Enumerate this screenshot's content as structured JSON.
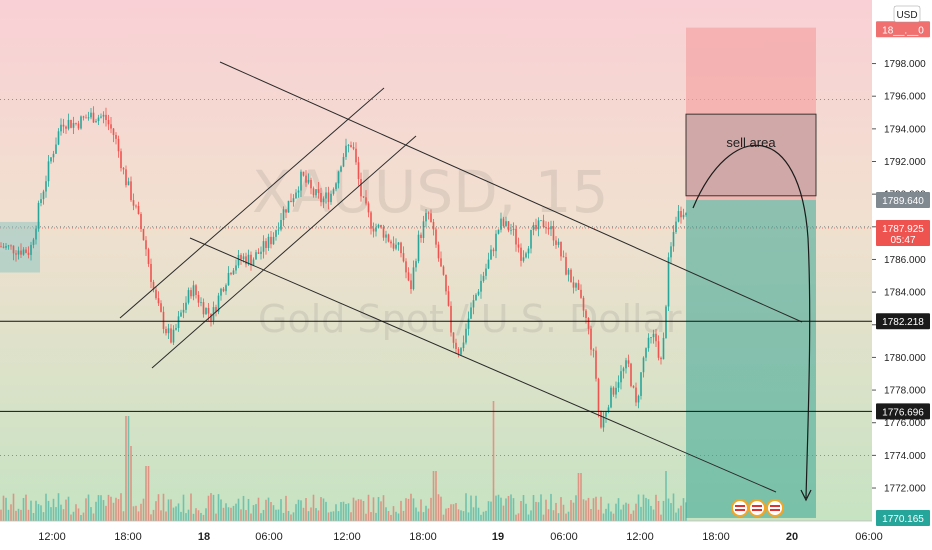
{
  "chart_data": {
    "type": "candlestick",
    "symbol": "XAUUSD, 15",
    "instrument_name": "Gold Spot / U.S. Dollar",
    "currency": "USD",
    "ylim": [
      1769.0,
      1800.3
    ],
    "price_ticks": [
      "1798.000",
      "1796.000",
      "1794.000",
      "1792.000",
      "1790.000",
      "1788.000",
      "1786.000",
      "1784.000",
      "1782.000",
      "1780.000",
      "1778.000",
      "1776.000",
      "1774.000",
      "1772.000"
    ],
    "time_ticks": [
      {
        "label": "12:00",
        "bold": false
      },
      {
        "label": "18:00",
        "bold": false
      },
      {
        "label": "18",
        "bold": true
      },
      {
        "label": "06:00",
        "bold": false
      },
      {
        "label": "12:00",
        "bold": false
      },
      {
        "label": "18:00",
        "bold": false
      },
      {
        "label": "19",
        "bold": true
      },
      {
        "label": "06:00",
        "bold": false
      },
      {
        "label": "12:00",
        "bold": false
      },
      {
        "label": "18:00",
        "bold": false
      },
      {
        "label": "20",
        "bold": true
      },
      {
        "label": "06:00",
        "bold": false
      }
    ],
    "price_labels": {
      "top_clipped": "18__.__0",
      "target": "1789.640",
      "last": "1787.925",
      "countdown": "05:47",
      "level_upper": "1782.218",
      "level_lower": "1776.696",
      "take_profit": "1770.165"
    },
    "horizontal_levels": [
      1782.218,
      1776.696
    ],
    "dotted_levels": [
      1795.8,
      1788.0,
      1774.0
    ],
    "annotation": "sell area",
    "price_path_keypoints": [
      [
        0,
        1786.8
      ],
      [
        30,
        1786.5
      ],
      [
        40,
        1789.5
      ],
      [
        50,
        1792.0
      ],
      [
        62,
        1794.5
      ],
      [
        75,
        1794.3
      ],
      [
        90,
        1794.8
      ],
      [
        105,
        1794.7
      ],
      [
        115,
        1793.5
      ],
      [
        125,
        1791.0
      ],
      [
        135,
        1789.2
      ],
      [
        145,
        1787.0
      ],
      [
        155,
        1783.6
      ],
      [
        165,
        1781.8
      ],
      [
        172,
        1781.0
      ],
      [
        180,
        1782.5
      ],
      [
        192,
        1784.3
      ],
      [
        202,
        1783.2
      ],
      [
        212,
        1782.5
      ],
      [
        222,
        1784.3
      ],
      [
        232,
        1785.6
      ],
      [
        242,
        1786.1
      ],
      [
        252,
        1786.0
      ],
      [
        262,
        1786.6
      ],
      [
        272,
        1787.3
      ],
      [
        282,
        1788.8
      ],
      [
        292,
        1789.8
      ],
      [
        302,
        1791.1
      ],
      [
        312,
        1790.1
      ],
      [
        322,
        1789.6
      ],
      [
        332,
        1790.1
      ],
      [
        342,
        1792.3
      ],
      [
        352,
        1793.2
      ],
      [
        362,
        1789.6
      ],
      [
        372,
        1788.1
      ],
      [
        382,
        1787.8
      ],
      [
        392,
        1787.0
      ],
      [
        402,
        1786.4
      ],
      [
        410,
        1784.0
      ],
      [
        418,
        1787.1
      ],
      [
        428,
        1788.9
      ],
      [
        436,
        1786.8
      ],
      [
        445,
        1784.2
      ],
      [
        452,
        1781.3
      ],
      [
        460,
        1780.2
      ],
      [
        468,
        1782.3
      ],
      [
        478,
        1784.2
      ],
      [
        490,
        1786.1
      ],
      [
        500,
        1788.2
      ],
      [
        512,
        1787.8
      ],
      [
        522,
        1786.2
      ],
      [
        532,
        1787.6
      ],
      [
        545,
        1788.3
      ],
      [
        555,
        1787.4
      ],
      [
        565,
        1785.5
      ],
      [
        575,
        1784.3
      ],
      [
        585,
        1782.6
      ],
      [
        595,
        1779.6
      ],
      [
        600,
        1775.5
      ],
      [
        608,
        1777.3
      ],
      [
        618,
        1778.7
      ],
      [
        628,
        1779.6
      ],
      [
        636,
        1777.0
      ],
      [
        645,
        1780.5
      ],
      [
        655,
        1781.3
      ],
      [
        662,
        1779.4
      ],
      [
        668,
        1785.5
      ],
      [
        676,
        1788.6
      ],
      [
        684,
        1789.2
      ],
      [
        688,
        1788.3
      ]
    ],
    "volume_spikes": [
      [
        127,
        105
      ],
      [
        131,
        75
      ],
      [
        147,
        55
      ],
      [
        435,
        50
      ],
      [
        493,
        120
      ],
      [
        580,
        48
      ],
      [
        666,
        50
      ]
    ]
  }
}
